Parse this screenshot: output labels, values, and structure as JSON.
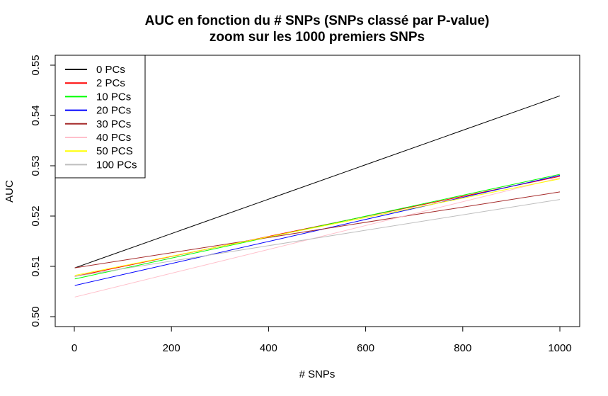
{
  "chart_data": {
    "type": "line",
    "title": "AUC en fonction du # SNPs (SNPs classé par P-value)",
    "subtitle": "zoom sur les 1000 premiers SNPs",
    "xlabel": "# SNPs",
    "ylabel": "AUC",
    "xlim": [
      0,
      1000
    ],
    "ylim": [
      0.5,
      0.55
    ],
    "x_ticks": [
      0,
      200,
      400,
      600,
      800,
      1000
    ],
    "y_ticks": [
      0.5,
      0.51,
      0.52,
      0.53,
      0.54,
      0.55
    ],
    "x_tick_labels": [
      "0",
      "200",
      "400",
      "600",
      "800",
      "1000"
    ],
    "y_tick_labels": [
      "0.50",
      "0.51",
      "0.52",
      "0.53",
      "0.54",
      "0.55"
    ],
    "grid": false,
    "legend_position": "top-left",
    "series": [
      {
        "name": "0 PCs",
        "color": "#000000",
        "x": [
          1,
          1000
        ],
        "y": [
          0.5097,
          0.5439
        ]
      },
      {
        "name": "2 PCs",
        "color": "#ff0000",
        "x": [
          1,
          1000
        ],
        "y": [
          0.508,
          0.5279
        ]
      },
      {
        "name": "10 PCs",
        "color": "#00ff00",
        "x": [
          1,
          1000
        ],
        "y": [
          0.5075,
          0.5283
        ]
      },
      {
        "name": "20 PCs",
        "color": "#0000ff",
        "x": [
          1,
          1000
        ],
        "y": [
          0.5062,
          0.5281
        ]
      },
      {
        "name": "30 PCs",
        "color": "#a52a2a",
        "x": [
          1,
          1000
        ],
        "y": [
          0.5097,
          0.5248
        ]
      },
      {
        "name": "40 PCs",
        "color": "#ffc0cb",
        "x": [
          1,
          1000
        ],
        "y": [
          0.5039,
          0.5276
        ]
      },
      {
        "name": "50 PCS",
        "color": "#ffff00",
        "x": [
          1,
          1000
        ],
        "y": [
          0.5082,
          0.5274
        ]
      },
      {
        "name": "100 PCs",
        "color": "#bebebe",
        "x": [
          1,
          1000
        ],
        "y": [
          0.508,
          0.5233
        ]
      }
    ]
  }
}
